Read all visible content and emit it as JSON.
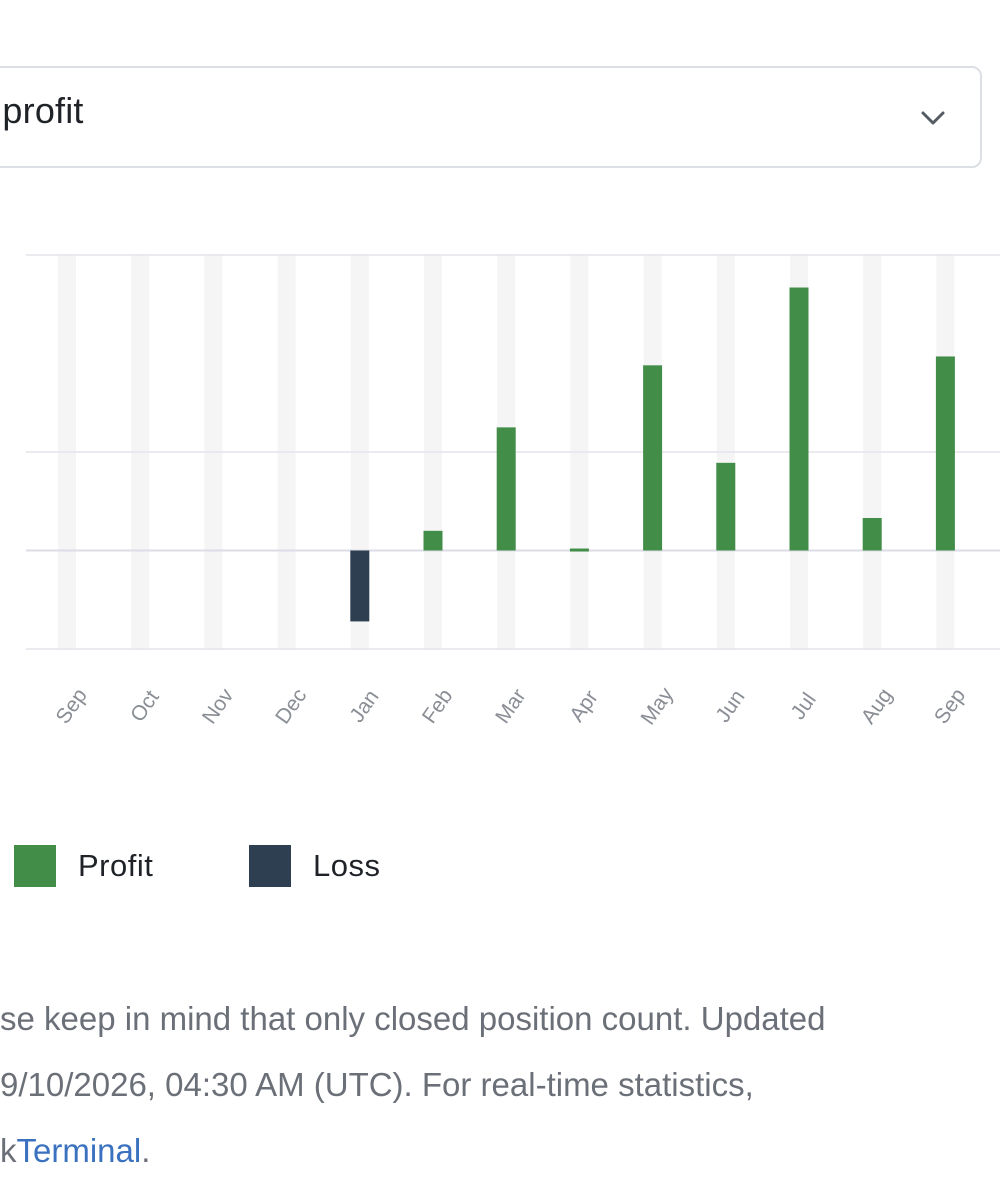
{
  "filter": {
    "selected_value": "t profit"
  },
  "chart_data": {
    "type": "bar",
    "categories": [
      "Sep",
      "Oct",
      "Nov",
      "Dec",
      "Jan",
      "Feb",
      "Mar",
      "Apr",
      "May",
      "Jun",
      "Jul",
      "Aug",
      "Sep"
    ],
    "values": [
      0,
      0,
      0,
      0,
      -0.72,
      0.2,
      1.25,
      0.02,
      1.88,
      0.89,
      2.67,
      0.33,
      1.97
    ],
    "ylim": [
      -1,
      3
    ],
    "grid": true,
    "legend_position": "bottom-left",
    "series_colors": {
      "Profit": "#428e48",
      "Loss": "#2f3f52"
    }
  },
  "legend": {
    "items": [
      {
        "label": "Profit",
        "color": "#428e48"
      },
      {
        "label": "Loss",
        "color": "#2f3f52"
      }
    ]
  },
  "note": {
    "line1": "se keep in mind that only closed position count. Updated",
    "line2": "9/10/2026, 04:30 AM (UTC). For real-time statistics,",
    "line3_prefix": "k",
    "link_text": "Terminal",
    "line3_suffix": "."
  }
}
